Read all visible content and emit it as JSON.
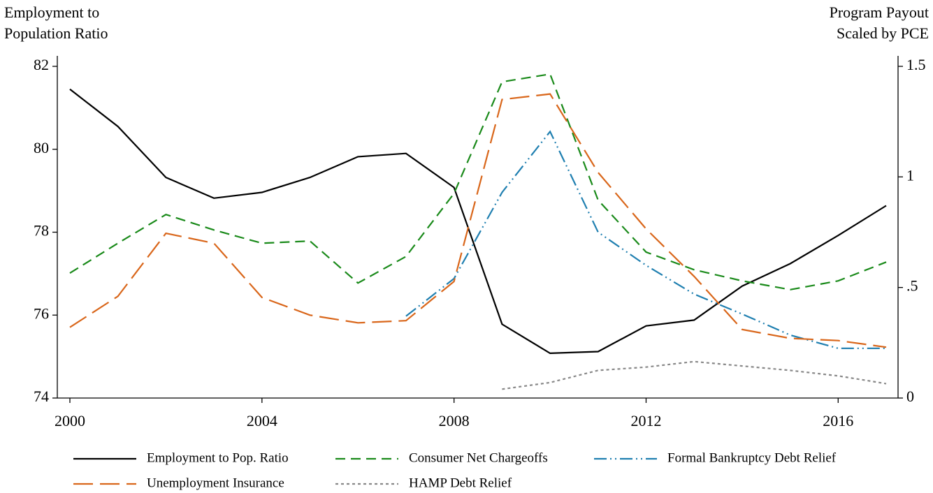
{
  "chart_data": {
    "type": "line",
    "y_label": [
      "Employment to",
      "Population Ratio"
    ],
    "y2_label": [
      "Program Payout",
      "Scaled by PCE"
    ],
    "x": [
      2000,
      2001,
      2002,
      2003,
      2004,
      2005,
      2006,
      2007,
      2008,
      2009,
      2010,
      2011,
      2012,
      2013,
      2014,
      2015,
      2016,
      2017
    ],
    "xlim": [
      2000,
      2017
    ],
    "xticks": [
      2000,
      2004,
      2008,
      2012,
      2016
    ],
    "ylim": [
      74,
      82
    ],
    "yticks": [
      74,
      76,
      78,
      80,
      82
    ],
    "y2lim": [
      0,
      1.5
    ],
    "y2ticks": [
      0,
      {
        "value": 0.5,
        "label": ".5"
      },
      1,
      1.5
    ],
    "series": [
      {
        "name": "Employment to Pop. Ratio",
        "color": "#000000",
        "dash": "none",
        "values": [
          81.45,
          80.55,
          79.32,
          78.82,
          78.96,
          79.32,
          79.82,
          79.9,
          79.08,
          75.78,
          75.08,
          75.12,
          75.74,
          75.88,
          76.7,
          77.24,
          77.92,
          78.64
        ]
      },
      {
        "name": "Consumer Net Chargeoffs",
        "color": "#1a8a1a",
        "dash": "14,8",
        "axis": "y2",
        "values": [
          0.565,
          0.7,
          0.83,
          0.76,
          0.7,
          0.71,
          0.52,
          0.64,
          0.925,
          1.43,
          1.465,
          0.895,
          0.66,
          0.58,
          0.53,
          0.49,
          0.53,
          0.615
        ]
      },
      {
        "name": "Formal Bankruptcy Debt Relief",
        "color": "#1f7fb0",
        "dash": "18,5,2,5,2,5",
        "axis": "y2",
        "values": [
          null,
          null,
          null,
          null,
          null,
          null,
          null,
          0.37,
          0.54,
          0.93,
          1.205,
          0.75,
          0.6,
          0.47,
          0.38,
          0.285,
          0.225,
          0.225
        ]
      },
      {
        "name": "Unemployment Insurance",
        "color": "#d9661a",
        "dash": "28,10",
        "axis": "y2",
        "values": [
          0.32,
          0.46,
          0.745,
          0.7,
          0.455,
          0.375,
          0.34,
          0.35,
          0.527,
          1.35,
          1.375,
          1.02,
          0.765,
          0.55,
          0.31,
          0.27,
          0.26,
          0.23
        ]
      },
      {
        "name": "HAMP Debt Relief",
        "color": "#888888",
        "dash": "4,4",
        "axis": "y2",
        "values": [
          null,
          null,
          null,
          null,
          null,
          null,
          null,
          null,
          null,
          0.04,
          0.07,
          0.125,
          0.14,
          0.165,
          0.145,
          0.125,
          0.1,
          0.065
        ]
      }
    ]
  }
}
